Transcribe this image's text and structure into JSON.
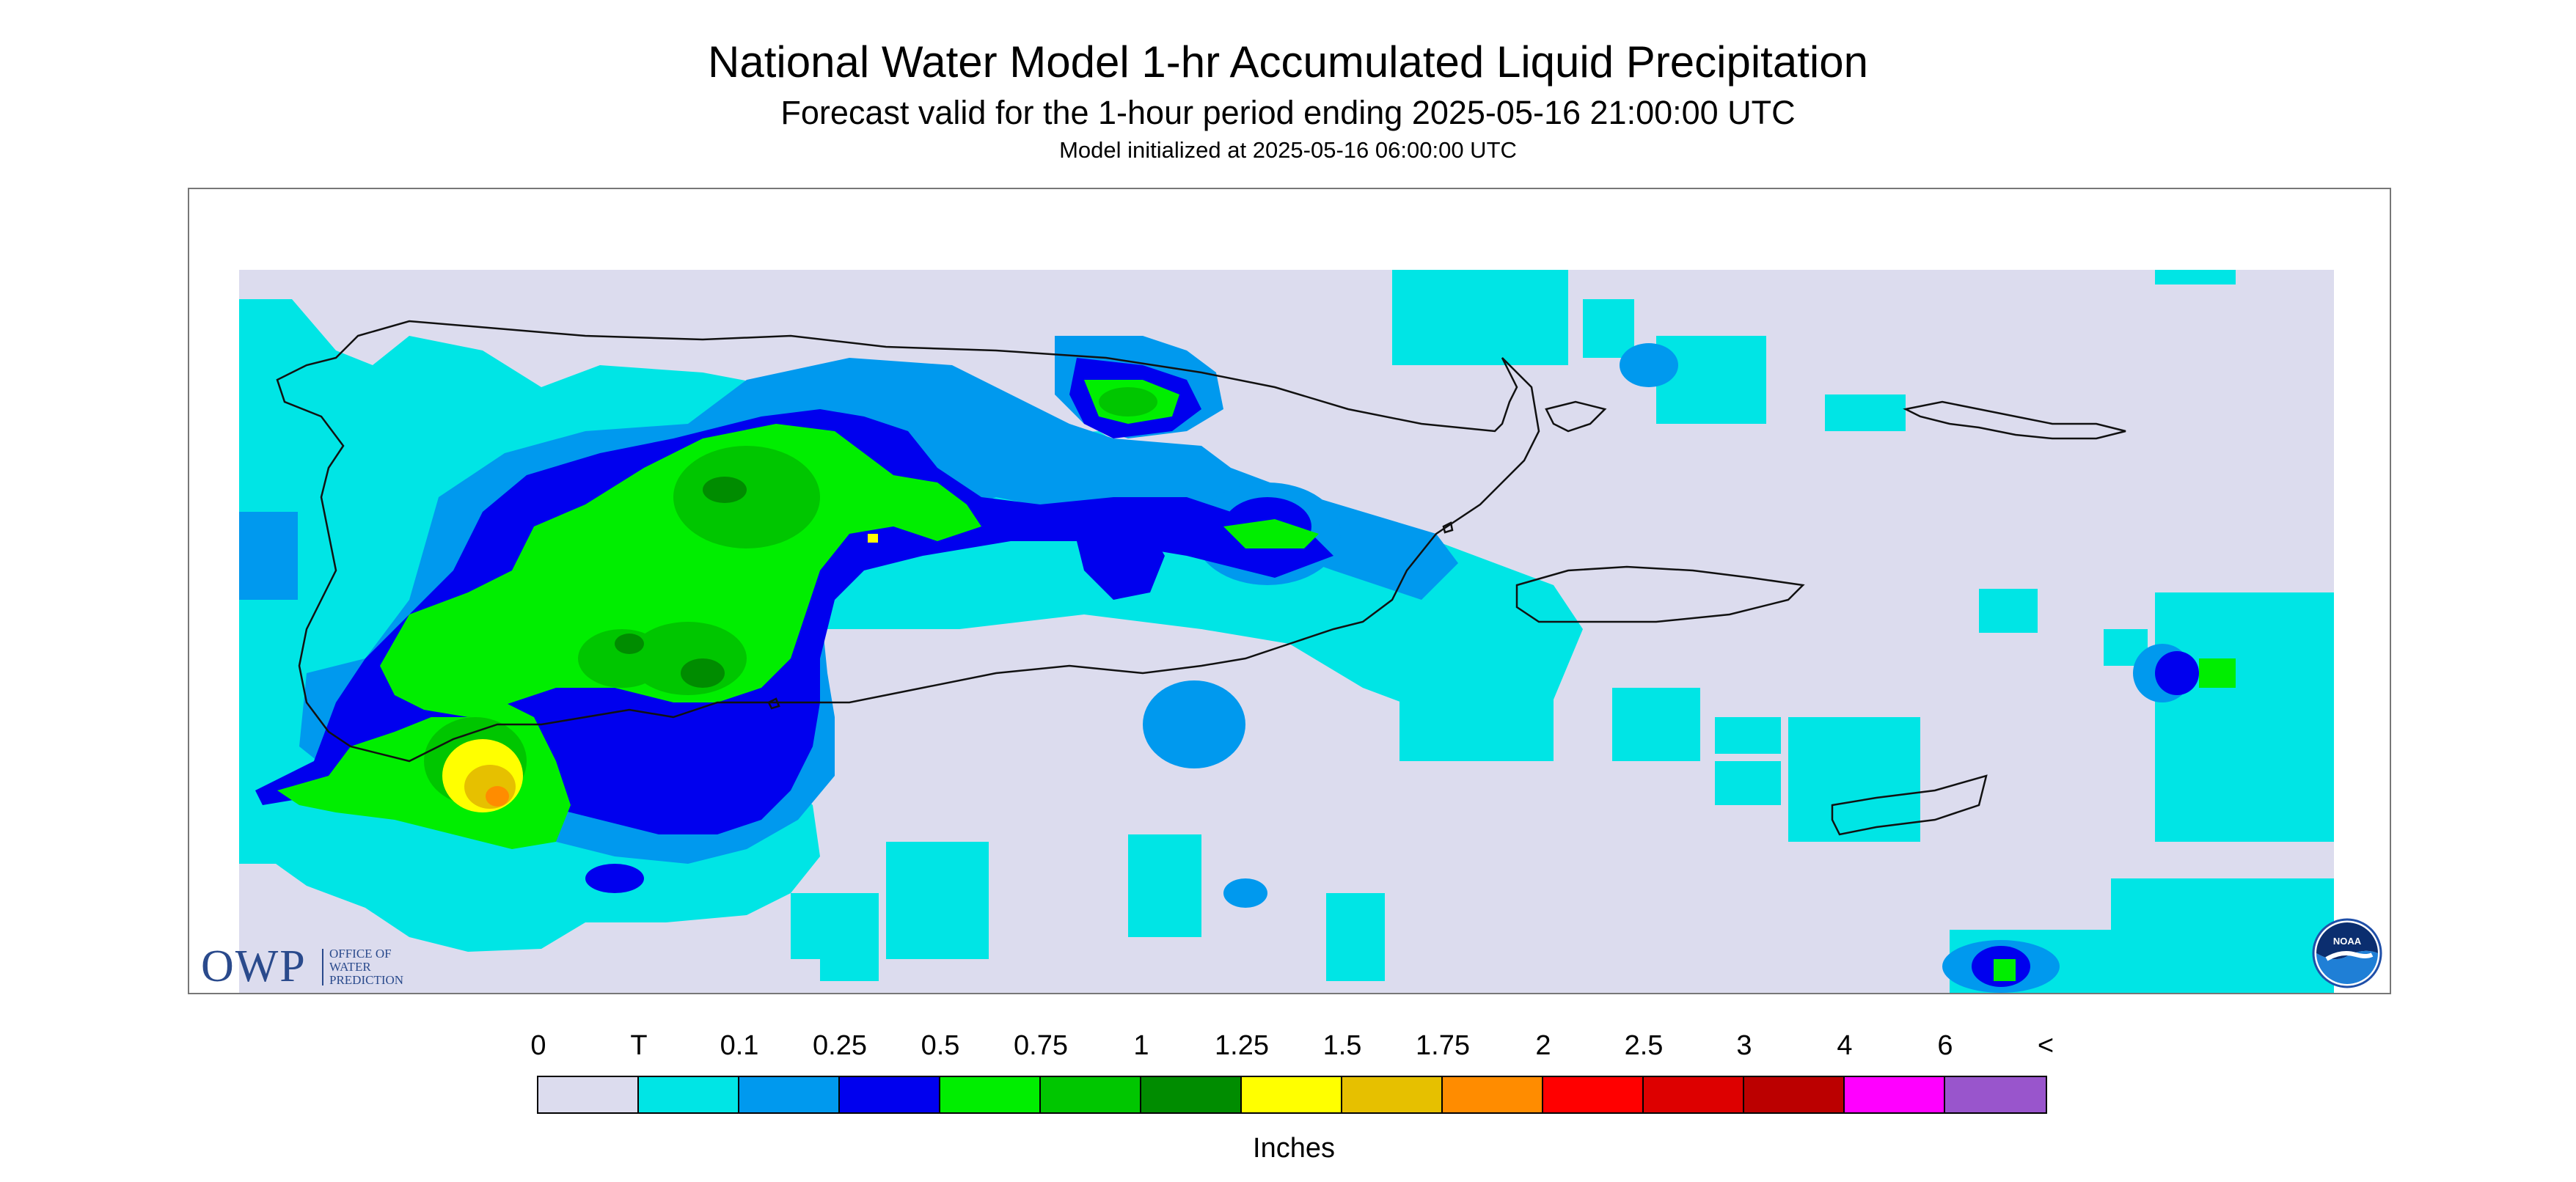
{
  "header": {
    "title": "National Water Model 1-hr Accumulated Liquid Precipitation",
    "subtitle": "Forecast valid for the 1-hour period ending 2025-05-16 21:00:00 UTC",
    "init": "Model initialized at 2025-05-16 06:00:00 UTC"
  },
  "legend": {
    "labels": [
      "0",
      "T",
      "0.1",
      "0.25",
      "0.5",
      "0.75",
      "1",
      "1.25",
      "1.5",
      "1.75",
      "2",
      "2.5",
      "3",
      "4",
      "6",
      "<"
    ],
    "colors": [
      "#dcdcee",
      "#00e5e5",
      "#0099ee",
      "#0000ee",
      "#00ee00",
      "#00c600",
      "#008c00",
      "#ffff00",
      "#e6c000",
      "#ff8c00",
      "#ff0000",
      "#dd0000",
      "#bb0000",
      "#ff00ff",
      "#9955cc"
    ],
    "units": "Inches"
  },
  "logos": {
    "owp_letters": "OWP",
    "owp_name": [
      "OFFICE OF",
      "WATER",
      "PREDICTION"
    ],
    "noaa": "NOAA"
  },
  "colors": {
    "no_precip": "#dcdcee",
    "trace": "#00e5e5",
    "accent_owp": "#2a4a8c",
    "noaa_blue": "#1f4fa8"
  }
}
